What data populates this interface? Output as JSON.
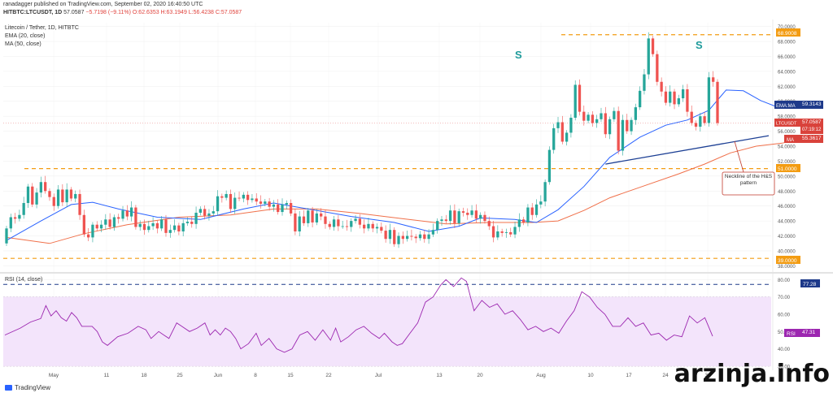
{
  "header": {
    "publisher": "ranadagger published on TradingView.com, September 02, 2020 16:40:50 UTC",
    "symbol_line": "HITBTC:LTCUSDT, 1D",
    "last": "57.0587",
    "change": "−5.7198 (−9.11%)",
    "ohlc": "O:62.6353  H:63.1949  L:56.4238  C:57.0587"
  },
  "legend": {
    "title": "Litecoin / Tether, 1D, HITBTC",
    "ema": "EMA (20, close)",
    "ma": "MA (50, close)",
    "rsi": "RSI (14, close)"
  },
  "annotations": {
    "s_left": "S",
    "s_right": "S",
    "neckline_note": "Neckline of the H&S pattern"
  },
  "price_tags": {
    "resistance": "68.9008",
    "emama_label": "EMA:MA",
    "emama_value": "59.3143",
    "ltc_label": "LTCUSDT",
    "ltc_value": "57.0587",
    "countdown": "07:19:12",
    "ma_label": "MA",
    "ma_value": "55.3617",
    "support_mid": "51.0000",
    "support_low": "39.0000",
    "rsi_level": "77.28",
    "rsi_label": "RSI",
    "rsi_value": "47.31"
  },
  "footer": {
    "brand": "TradingView",
    "watermark": "arzinja.info"
  },
  "colors": {
    "up": "#26a69a",
    "down": "#ef5350",
    "ema": "#2962ff",
    "ma": "#f0704a",
    "rsi": "#9c27b0",
    "level": "#f39c12",
    "neckline": "#1c3f94",
    "rsi_band": "#f3e4fb"
  },
  "chart_data": [
    {
      "type": "candlestick",
      "yticks": [
        38,
        40,
        42,
        44,
        46,
        48,
        50,
        52,
        54,
        56,
        58,
        60,
        62,
        64,
        66,
        68,
        70
      ],
      "ylim": [
        37.5,
        70.5
      ],
      "xticks": [
        "May",
        "11",
        "18",
        "25",
        "Jun",
        "8",
        "15",
        "22",
        "Jul",
        "13",
        "20",
        "Aug",
        "10",
        "17",
        "24",
        "31"
      ],
      "levels": [
        68.9,
        51.0,
        39.0
      ],
      "neckline": [
        [
          139,
          51.6
        ],
        [
          188,
          55.4
        ]
      ],
      "candles": [
        [
          41.0,
          43.0
        ],
        [
          43.0,
          44.5
        ],
        [
          44.5,
          44.3
        ],
        [
          44.3,
          44.8
        ],
        [
          44.8,
          46.4
        ],
        [
          46.4,
          48.6
        ],
        [
          48.6,
          46.2
        ],
        [
          46.2,
          47.8
        ],
        [
          47.8,
          49.2
        ],
        [
          49.2,
          48.0
        ],
        [
          48.0,
          47.2
        ],
        [
          47.2,
          46.0
        ],
        [
          46.0,
          48.2
        ],
        [
          48.2,
          46.5
        ],
        [
          46.5,
          48.2
        ],
        [
          48.2,
          47.0
        ],
        [
          47.0,
          47.6
        ],
        [
          47.6,
          44.8
        ],
        [
          44.8,
          42.2
        ],
        [
          42.2,
          41.8
        ],
        [
          41.8,
          43.5
        ],
        [
          43.5,
          43.0
        ],
        [
          43.0,
          43.5
        ],
        [
          43.5,
          44.2
        ],
        [
          44.2,
          43.2
        ],
        [
          43.2,
          44.5
        ],
        [
          44.5,
          44.3
        ],
        [
          44.3,
          45.4
        ],
        [
          45.4,
          44.6
        ],
        [
          44.6,
          45.8
        ],
        [
          45.8,
          43.2
        ],
        [
          43.2,
          43.6
        ],
        [
          43.6,
          42.8
        ],
        [
          42.8,
          43.3
        ],
        [
          43.3,
          43.7
        ],
        [
          43.7,
          43.0
        ],
        [
          43.0,
          44.2
        ],
        [
          44.2,
          42.4
        ],
        [
          42.4,
          42.8
        ],
        [
          42.8,
          43.4
        ],
        [
          43.4,
          42.6
        ],
        [
          42.6,
          43.7
        ],
        [
          43.7,
          43.9
        ],
        [
          43.9,
          43.6
        ],
        [
          43.6,
          45.1
        ],
        [
          45.1,
          45.6
        ],
        [
          45.6,
          44.7
        ],
        [
          44.7,
          45.0
        ],
        [
          45.0,
          45.3
        ],
        [
          45.3,
          47.3
        ],
        [
          47.3,
          47.1
        ],
        [
          47.1,
          47.6
        ],
        [
          47.6,
          45.6
        ],
        [
          45.6,
          47.1
        ],
        [
          47.1,
          47.0
        ],
        [
          47.0,
          47.5
        ],
        [
          47.5,
          46.8
        ],
        [
          46.8,
          47.0
        ],
        [
          47.0,
          46.6
        ],
        [
          46.6,
          46.3
        ],
        [
          46.3,
          46.6
        ],
        [
          46.6,
          45.9
        ],
        [
          45.9,
          46.2
        ],
        [
          46.2,
          45.2
        ],
        [
          45.2,
          46.2
        ],
        [
          46.2,
          46.4
        ],
        [
          46.4,
          45.0
        ],
        [
          45.0,
          42.6
        ],
        [
          42.6,
          44.6
        ],
        [
          44.6,
          43.7
        ],
        [
          43.7,
          45.4
        ],
        [
          45.4,
          43.8
        ],
        [
          43.8,
          45.0
        ],
        [
          45.0,
          44.6
        ],
        [
          44.6,
          43.6
        ],
        [
          43.6,
          43.2
        ],
        [
          43.2,
          44.2
        ],
        [
          44.2,
          43.3
        ],
        [
          43.3,
          43.3
        ],
        [
          43.3,
          43.2
        ],
        [
          43.2,
          44.0
        ],
        [
          44.0,
          44.3
        ],
        [
          44.3,
          43.5
        ],
        [
          43.5,
          43.0
        ],
        [
          43.0,
          43.6
        ],
        [
          43.6,
          43.0
        ],
        [
          43.0,
          43.2
        ],
        [
          43.2,
          42.7
        ],
        [
          42.7,
          41.6
        ],
        [
          41.6,
          42.8
        ],
        [
          42.8,
          40.9
        ],
        [
          40.9,
          42.0
        ],
        [
          42.0,
          41.6
        ],
        [
          41.6,
          42.0
        ],
        [
          42.0,
          41.9
        ],
        [
          41.9,
          41.7
        ],
        [
          41.7,
          42.2
        ],
        [
          42.2,
          41.6
        ],
        [
          41.6,
          42.2
        ],
        [
          42.2,
          42.8
        ],
        [
          42.8,
          44.0
        ],
        [
          44.0,
          44.2
        ],
        [
          44.2,
          44.0
        ],
        [
          44.0,
          45.4
        ],
        [
          45.4,
          43.7
        ],
        [
          43.7,
          45.3
        ],
        [
          45.3,
          45.1
        ],
        [
          45.1,
          44.8
        ],
        [
          44.8,
          45.4
        ],
        [
          45.4,
          44.3
        ],
        [
          44.3,
          44.8
        ],
        [
          44.8,
          44.0
        ],
        [
          44.0,
          43.3
        ],
        [
          43.3,
          41.8
        ],
        [
          41.8,
          42.6
        ],
        [
          42.6,
          42.4
        ],
        [
          42.4,
          42.5
        ],
        [
          42.5,
          42.2
        ],
        [
          42.2,
          43.2
        ],
        [
          43.2,
          44.2
        ],
        [
          44.2,
          43.8
        ],
        [
          43.8,
          45.8
        ],
        [
          45.8,
          44.8
        ],
        [
          44.8,
          46.2
        ],
        [
          46.2,
          46.6
        ],
        [
          46.6,
          49.2
        ],
        [
          49.2,
          53.5
        ],
        [
          53.5,
          56.4
        ],
        [
          56.4,
          57.2
        ],
        [
          57.2,
          54.6
        ],
        [
          54.6,
          55.8
        ],
        [
          55.8,
          57.8
        ],
        [
          57.8,
          62.2
        ],
        [
          62.2,
          58.6
        ],
        [
          58.6,
          57.4
        ],
        [
          57.4,
          58.2
        ],
        [
          58.2,
          57.1
        ],
        [
          57.1,
          57.6
        ],
        [
          57.6,
          58.4
        ],
        [
          58.4,
          55.6
        ],
        [
          55.6,
          57.6
        ],
        [
          57.6,
          58.7
        ],
        [
          58.7,
          53.4
        ],
        [
          53.4,
          57.5
        ],
        [
          57.5,
          56.0
        ],
        [
          56.0,
          57.5
        ],
        [
          57.5,
          59.2
        ],
        [
          59.2,
          61.4
        ],
        [
          61.4,
          63.6
        ],
        [
          63.6,
          68.4
        ],
        [
          68.4,
          66.3
        ],
        [
          66.3,
          62.6
        ],
        [
          62.6,
          61.3
        ],
        [
          61.3,
          59.8
        ],
        [
          59.8,
          61.3
        ],
        [
          61.3,
          59.6
        ],
        [
          59.6,
          60.4
        ],
        [
          60.4,
          61.6
        ],
        [
          61.6,
          58.6
        ],
        [
          58.6,
          57.1
        ],
        [
          57.1,
          56.6
        ],
        [
          56.6,
          58.0
        ],
        [
          58.0,
          57.1
        ],
        [
          57.1,
          63.2
        ],
        [
          63.2,
          62.6
        ],
        [
          62.6,
          57.1
        ]
      ],
      "ema": [
        [
          0,
          41.4
        ],
        [
          8,
          44.0
        ],
        [
          15,
          46.2
        ],
        [
          20,
          46.5
        ],
        [
          26,
          45.6
        ],
        [
          35,
          44.5
        ],
        [
          45,
          44.2
        ],
        [
          55,
          45.6
        ],
        [
          62,
          46.4
        ],
        [
          70,
          45.6
        ],
        [
          80,
          44.6
        ],
        [
          90,
          43.8
        ],
        [
          98,
          42.6
        ],
        [
          105,
          43.3
        ],
        [
          110,
          44.4
        ],
        [
          118,
          44.2
        ],
        [
          123,
          43.8
        ],
        [
          128,
          45.5
        ],
        [
          134,
          48.6
        ],
        [
          140,
          52.5
        ],
        [
          147,
          55.2
        ],
        [
          153,
          56.8
        ],
        [
          158,
          57.5
        ],
        [
          163,
          58.8
        ],
        [
          167,
          61.5
        ],
        [
          171,
          61.4
        ],
        [
          175,
          60.1
        ],
        [
          179,
          59.2
        ],
        [
          183,
          59.1
        ],
        [
          187,
          59.3
        ]
      ],
      "ma": [
        [
          0,
          41.8
        ],
        [
          10,
          41.0
        ],
        [
          18,
          42.3
        ],
        [
          28,
          43.5
        ],
        [
          40,
          44.5
        ],
        [
          52,
          44.8
        ],
        [
          62,
          45.6
        ],
        [
          72,
          45.6
        ],
        [
          82,
          45.0
        ],
        [
          92,
          44.3
        ],
        [
          102,
          43.6
        ],
        [
          112,
          43.8
        ],
        [
          122,
          43.8
        ],
        [
          128,
          44.0
        ],
        [
          134,
          45.4
        ],
        [
          140,
          47.1
        ],
        [
          148,
          48.7
        ],
        [
          156,
          50.3
        ],
        [
          162,
          51.6
        ],
        [
          168,
          53.1
        ],
        [
          174,
          54.0
        ],
        [
          180,
          54.4
        ],
        [
          187,
          55.4
        ]
      ]
    },
    {
      "type": "line",
      "title": "RSI (14, close)",
      "yticks": [
        30,
        40,
        50,
        60,
        70,
        80
      ],
      "ylim": [
        29.5,
        83.0
      ],
      "band": [
        30,
        70
      ],
      "level": 77.28,
      "values": [
        [
          0,
          48.0
        ],
        [
          6,
          52.0
        ],
        [
          10,
          55.5
        ],
        [
          14,
          57.5
        ],
        [
          16,
          65.0
        ],
        [
          18,
          59.0
        ],
        [
          20,
          62.0
        ],
        [
          22,
          58.0
        ],
        [
          24,
          56.0
        ],
        [
          26,
          61.0
        ],
        [
          28,
          58.0
        ],
        [
          30,
          53.0
        ],
        [
          34,
          53.0
        ],
        [
          36,
          50.0
        ],
        [
          38,
          44.0
        ],
        [
          40,
          42.0
        ],
        [
          44,
          47.0
        ],
        [
          48,
          49.0
        ],
        [
          52,
          53.0
        ],
        [
          55,
          51.0
        ],
        [
          57,
          46.0
        ],
        [
          60,
          50.0
        ],
        [
          62,
          48.0
        ],
        [
          64,
          46.0
        ],
        [
          67,
          55.0
        ],
        [
          69,
          53.0
        ],
        [
          72,
          50.0
        ],
        [
          75,
          52.0
        ],
        [
          78,
          55.0
        ],
        [
          80,
          48.0
        ],
        [
          82,
          51.0
        ],
        [
          84,
          48.0
        ],
        [
          86,
          52.0
        ],
        [
          88,
          50.0
        ],
        [
          90,
          46.0
        ],
        [
          92,
          40.0
        ],
        [
          95,
          43.0
        ],
        [
          98,
          49.0
        ],
        [
          100,
          42.0
        ],
        [
          103,
          46.0
        ],
        [
          106,
          40.0
        ],
        [
          109,
          38.0
        ],
        [
          112,
          40.0
        ],
        [
          115,
          48.0
        ],
        [
          118,
          50.0
        ],
        [
          121,
          45.0
        ],
        [
          124,
          51.0
        ],
        [
          127,
          45.0
        ],
        [
          129,
          52.0
        ],
        [
          131,
          44.0
        ],
        [
          134,
          47.0
        ],
        [
          137,
          51.0
        ],
        [
          140,
          53.0
        ],
        [
          143,
          49.0
        ],
        [
          146,
          46.0
        ],
        [
          148,
          49.0
        ],
        [
          151,
          44.0
        ],
        [
          153,
          42.0
        ],
        [
          155,
          43.0
        ],
        [
          158,
          49.0
        ],
        [
          161,
          55.0
        ],
        [
          164,
          67.0
        ],
        [
          167,
          70.0
        ],
        [
          170,
          77.0
        ],
        [
          172,
          80.0
        ],
        [
          175,
          76.0
        ],
        [
          178,
          81.0
        ],
        [
          180,
          79.0
        ],
        [
          183,
          62.0
        ],
        [
          186,
          68.0
        ],
        [
          189,
          64.0
        ],
        [
          192,
          66.0
        ],
        [
          195,
          60.0
        ],
        [
          198,
          62.0
        ],
        [
          201,
          57.0
        ],
        [
          204,
          51.0
        ],
        [
          207,
          53.0
        ],
        [
          210,
          50.0
        ],
        [
          213,
          52.0
        ],
        [
          216,
          49.0
        ],
        [
          219,
          56.0
        ],
        [
          222,
          62.0
        ],
        [
          225,
          73.0
        ],
        [
          228,
          70.0
        ],
        [
          231,
          64.0
        ],
        [
          234,
          60.0
        ],
        [
          237,
          53.0
        ],
        [
          240,
          53.0
        ],
        [
          243,
          58.0
        ],
        [
          246,
          53.0
        ],
        [
          249,
          55.0
        ],
        [
          252,
          48.0
        ],
        [
          255,
          49.0
        ],
        [
          258,
          45.0
        ],
        [
          261,
          48.0
        ],
        [
          264,
          47.0
        ],
        [
          267,
          59.0
        ],
        [
          270,
          55.0
        ],
        [
          273,
          58.0
        ],
        [
          276,
          47.3
        ]
      ]
    }
  ]
}
